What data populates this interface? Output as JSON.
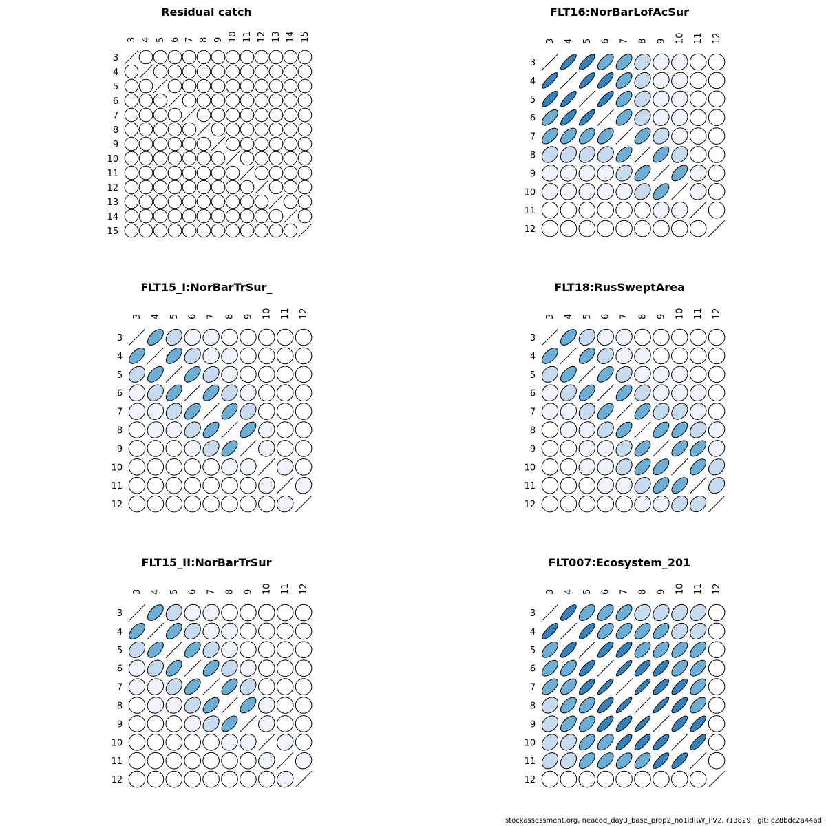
{
  "footer": "stockassessment.org, neacod_day3_base_prop2_no1idRW_PV2, r13829 , git: c28bdc2a44ad",
  "chart_data": [
    {
      "type": "correlation-ellipse-matrix",
      "title": "Residual catch",
      "labels": [
        "3",
        "4",
        "5",
        "6",
        "7",
        "8",
        "9",
        "10",
        "11",
        "12",
        "13",
        "14",
        "15"
      ],
      "correlations": [
        [
          1,
          0,
          0,
          0,
          0,
          0,
          0,
          0,
          0,
          0,
          0,
          0,
          0
        ],
        [
          0,
          1,
          0,
          0,
          0,
          0,
          0,
          0,
          0,
          0,
          0,
          0,
          0
        ],
        [
          0,
          0,
          1,
          0,
          0,
          0,
          0,
          0,
          0,
          0,
          0,
          0,
          0
        ],
        [
          0,
          0,
          0,
          1,
          0,
          0,
          0,
          0,
          0,
          0,
          0,
          0,
          0
        ],
        [
          0,
          0,
          0,
          0,
          1,
          0,
          0,
          0,
          0,
          0,
          0,
          0,
          0
        ],
        [
          0,
          0,
          0,
          0,
          0,
          1,
          0,
          0,
          0,
          0,
          0,
          0,
          0
        ],
        [
          0,
          0,
          0,
          0,
          0,
          0,
          1,
          0,
          0,
          0,
          0,
          0,
          0
        ],
        [
          0,
          0,
          0,
          0,
          0,
          0,
          0,
          1,
          0,
          0,
          0,
          0,
          0
        ],
        [
          0,
          0,
          0,
          0,
          0,
          0,
          0,
          0,
          1,
          0,
          0,
          0,
          0
        ],
        [
          0,
          0,
          0,
          0,
          0,
          0,
          0,
          0,
          0,
          1,
          0,
          0,
          0
        ],
        [
          0,
          0,
          0,
          0,
          0,
          0,
          0,
          0,
          0,
          0,
          1,
          0,
          0
        ],
        [
          0,
          0,
          0,
          0,
          0,
          0,
          0,
          0,
          0,
          0,
          0,
          1,
          0
        ],
        [
          0,
          0,
          0,
          0,
          0,
          0,
          0,
          0,
          0,
          0,
          0,
          0,
          1
        ]
      ]
    },
    {
      "type": "correlation-ellipse-matrix",
      "title": "FLT16:NorBarLofAcSur",
      "labels": [
        "3",
        "4",
        "5",
        "6",
        "7",
        "8",
        "9",
        "10",
        "11",
        "12"
      ],
      "correlations": [
        [
          1,
          0.85,
          0.8,
          0.65,
          0.6,
          0.3,
          0.1,
          0.1,
          0,
          0
        ],
        [
          0.85,
          1,
          0.85,
          0.8,
          0.6,
          0.3,
          0.1,
          0.1,
          0,
          0
        ],
        [
          0.8,
          0.85,
          1,
          0.85,
          0.6,
          0.3,
          0.1,
          0.1,
          0,
          0
        ],
        [
          0.65,
          0.8,
          0.85,
          1,
          0.6,
          0.3,
          0.1,
          0.1,
          0,
          0
        ],
        [
          0.6,
          0.6,
          0.6,
          0.6,
          1,
          0.6,
          0.3,
          0.1,
          0,
          0
        ],
        [
          0.3,
          0.3,
          0.3,
          0.3,
          0.6,
          1,
          0.6,
          0.3,
          0,
          0
        ],
        [
          0.1,
          0.1,
          0.1,
          0.1,
          0.3,
          0.6,
          1,
          0.6,
          0.1,
          0
        ],
        [
          0.1,
          0.1,
          0.1,
          0.1,
          0.1,
          0.3,
          0.6,
          1,
          0.1,
          0
        ],
        [
          0,
          0,
          0,
          0,
          0,
          0,
          0.1,
          0.1,
          1,
          0
        ],
        [
          0,
          0,
          0,
          0,
          0,
          0,
          0,
          0,
          0,
          1
        ]
      ]
    },
    {
      "type": "correlation-ellipse-matrix",
      "title": "FLT15_I:NorBarTrSur_",
      "labels": [
        "3",
        "4",
        "5",
        "6",
        "7",
        "8",
        "9",
        "10",
        "11",
        "12"
      ],
      "correlations": [
        [
          1,
          0.6,
          0.3,
          0.1,
          0.1,
          0,
          0,
          0,
          0,
          0
        ],
        [
          0.6,
          1,
          0.6,
          0.3,
          0.1,
          0.1,
          0,
          0,
          0,
          0
        ],
        [
          0.3,
          0.6,
          1,
          0.6,
          0.3,
          0.1,
          0,
          0,
          0,
          0
        ],
        [
          0.1,
          0.3,
          0.6,
          1,
          0.6,
          0.3,
          0.1,
          0,
          0,
          0
        ],
        [
          0.1,
          0.1,
          0.3,
          0.6,
          1,
          0.6,
          0.3,
          0,
          0,
          0
        ],
        [
          0,
          0.1,
          0.1,
          0.3,
          0.6,
          1,
          0.6,
          0.1,
          0,
          0
        ],
        [
          0,
          0,
          0,
          0.1,
          0.3,
          0.6,
          1,
          0.1,
          0,
          0
        ],
        [
          0,
          0,
          0,
          0,
          0,
          0.1,
          0.1,
          1,
          0.1,
          0
        ],
        [
          0,
          0,
          0,
          0,
          0,
          0,
          0,
          0.1,
          1,
          0.1
        ],
        [
          0,
          0,
          0,
          0,
          0,
          0,
          0,
          0,
          0.1,
          1
        ]
      ]
    },
    {
      "type": "correlation-ellipse-matrix",
      "title": "FLT18:RusSweptArea",
      "labels": [
        "3",
        "4",
        "5",
        "6",
        "7",
        "8",
        "9",
        "10",
        "11",
        "12"
      ],
      "correlations": [
        [
          1,
          0.6,
          0.3,
          0.1,
          0.1,
          0,
          0,
          0,
          0,
          0
        ],
        [
          0.6,
          1,
          0.6,
          0.3,
          0.1,
          0.1,
          0,
          0,
          0,
          0
        ],
        [
          0.3,
          0.6,
          1,
          0.6,
          0.3,
          0.1,
          0.1,
          0.1,
          0,
          0
        ],
        [
          0.1,
          0.3,
          0.6,
          1,
          0.6,
          0.3,
          0.1,
          0.1,
          0.1,
          0
        ],
        [
          0.1,
          0.1,
          0.3,
          0.6,
          1,
          0.6,
          0.3,
          0.3,
          0.1,
          0
        ],
        [
          0,
          0.1,
          0.1,
          0.3,
          0.6,
          1,
          0.6,
          0.6,
          0.3,
          0.1
        ],
        [
          0,
          0,
          0.1,
          0.1,
          0.3,
          0.6,
          1,
          0.6,
          0.6,
          0.1
        ],
        [
          0,
          0,
          0.1,
          0.1,
          0.3,
          0.6,
          0.6,
          1,
          0.6,
          0.3
        ],
        [
          0,
          0,
          0,
          0.1,
          0.1,
          0.3,
          0.6,
          0.6,
          1,
          0.3
        ],
        [
          0,
          0,
          0,
          0,
          0,
          0.1,
          0.1,
          0.3,
          0.3,
          1
        ]
      ]
    },
    {
      "type": "correlation-ellipse-matrix",
      "title": "FLT15_II:NorBarTrSur",
      "labels": [
        "3",
        "4",
        "5",
        "6",
        "7",
        "8",
        "9",
        "10",
        "11",
        "12"
      ],
      "correlations": [
        [
          1,
          0.6,
          0.3,
          0.1,
          0.1,
          0,
          0,
          0,
          0,
          0
        ],
        [
          0.6,
          1,
          0.6,
          0.3,
          0.1,
          0.1,
          0,
          0,
          0,
          0
        ],
        [
          0.3,
          0.6,
          1,
          0.6,
          0.3,
          0.1,
          0,
          0,
          0,
          0
        ],
        [
          0.1,
          0.3,
          0.6,
          1,
          0.6,
          0.3,
          0.1,
          0,
          0,
          0
        ],
        [
          0.1,
          0.1,
          0.3,
          0.6,
          1,
          0.6,
          0.3,
          0,
          0,
          0
        ],
        [
          0,
          0.1,
          0.1,
          0.3,
          0.6,
          1,
          0.6,
          0.1,
          0,
          0
        ],
        [
          0,
          0,
          0,
          0.1,
          0.3,
          0.6,
          1,
          0.1,
          0,
          0
        ],
        [
          0,
          0,
          0,
          0,
          0,
          0.1,
          0.1,
          1,
          0.1,
          0
        ],
        [
          0,
          0,
          0,
          0,
          0,
          0,
          0,
          0.1,
          1,
          0.1
        ],
        [
          0,
          0,
          0,
          0,
          0,
          0,
          0,
          0,
          0.1,
          1
        ]
      ]
    },
    {
      "type": "correlation-ellipse-matrix",
      "title": "FLT007:Ecosystem_201",
      "labels": [
        "3",
        "4",
        "5",
        "6",
        "7",
        "8",
        "9",
        "10",
        "11",
        "12"
      ],
      "correlations": [
        [
          1,
          0.8,
          0.6,
          0.6,
          0.6,
          0.3,
          0.3,
          0.3,
          0.3,
          0
        ],
        [
          0.8,
          1,
          0.8,
          0.6,
          0.6,
          0.6,
          0.6,
          0.3,
          0.3,
          0
        ],
        [
          0.6,
          0.8,
          1,
          0.8,
          0.8,
          0.6,
          0.6,
          0.6,
          0.6,
          0
        ],
        [
          0.6,
          0.6,
          0.8,
          1,
          0.9,
          0.8,
          0.8,
          0.6,
          0.6,
          0
        ],
        [
          0.6,
          0.6,
          0.8,
          0.9,
          1,
          0.9,
          0.8,
          0.8,
          0.6,
          0
        ],
        [
          0.3,
          0.6,
          0.6,
          0.8,
          0.9,
          1,
          0.9,
          0.8,
          0.6,
          0
        ],
        [
          0.3,
          0.6,
          0.6,
          0.8,
          0.8,
          0.9,
          1,
          0.8,
          0.8,
          0
        ],
        [
          0.3,
          0.3,
          0.6,
          0.6,
          0.8,
          0.8,
          0.8,
          1,
          0.8,
          0
        ],
        [
          0.3,
          0.3,
          0.6,
          0.6,
          0.6,
          0.6,
          0.8,
          0.8,
          1,
          0
        ],
        [
          0,
          0,
          0,
          0,
          0,
          0,
          0,
          0,
          0,
          1
        ]
      ]
    }
  ]
}
